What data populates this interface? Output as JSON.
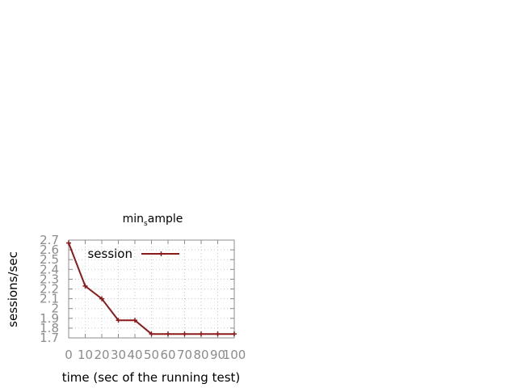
{
  "chart_data": {
    "type": "line",
    "title": "min",
    "title_sub": "s",
    "title_rest": "ample",
    "xlabel": "time (sec of the running test)",
    "ylabel": "sessions/sec",
    "xlim": [
      0,
      100
    ],
    "ylim": [
      1.7,
      2.7
    ],
    "x_ticks": [
      "0",
      "10",
      "20",
      "30",
      "40",
      "50",
      "60",
      "70",
      "80",
      "90",
      "100"
    ],
    "y_ticks": [
      "1.7",
      "1.8",
      "1.9",
      "2",
      "2.1",
      "2.2",
      "2.3",
      "2.4",
      "2.5",
      "2.6",
      "2.7"
    ],
    "grid": true,
    "legend_position": "top-left",
    "series": [
      {
        "name": "session",
        "color": "#8b1a1a",
        "marker": "plus",
        "x": [
          0,
          10,
          20,
          30,
          40,
          50,
          60,
          70,
          80,
          90,
          100
        ],
        "y": [
          2.67,
          2.23,
          2.1,
          1.88,
          1.88,
          1.74,
          1.74,
          1.74,
          1.74,
          1.74,
          1.74
        ]
      }
    ]
  }
}
